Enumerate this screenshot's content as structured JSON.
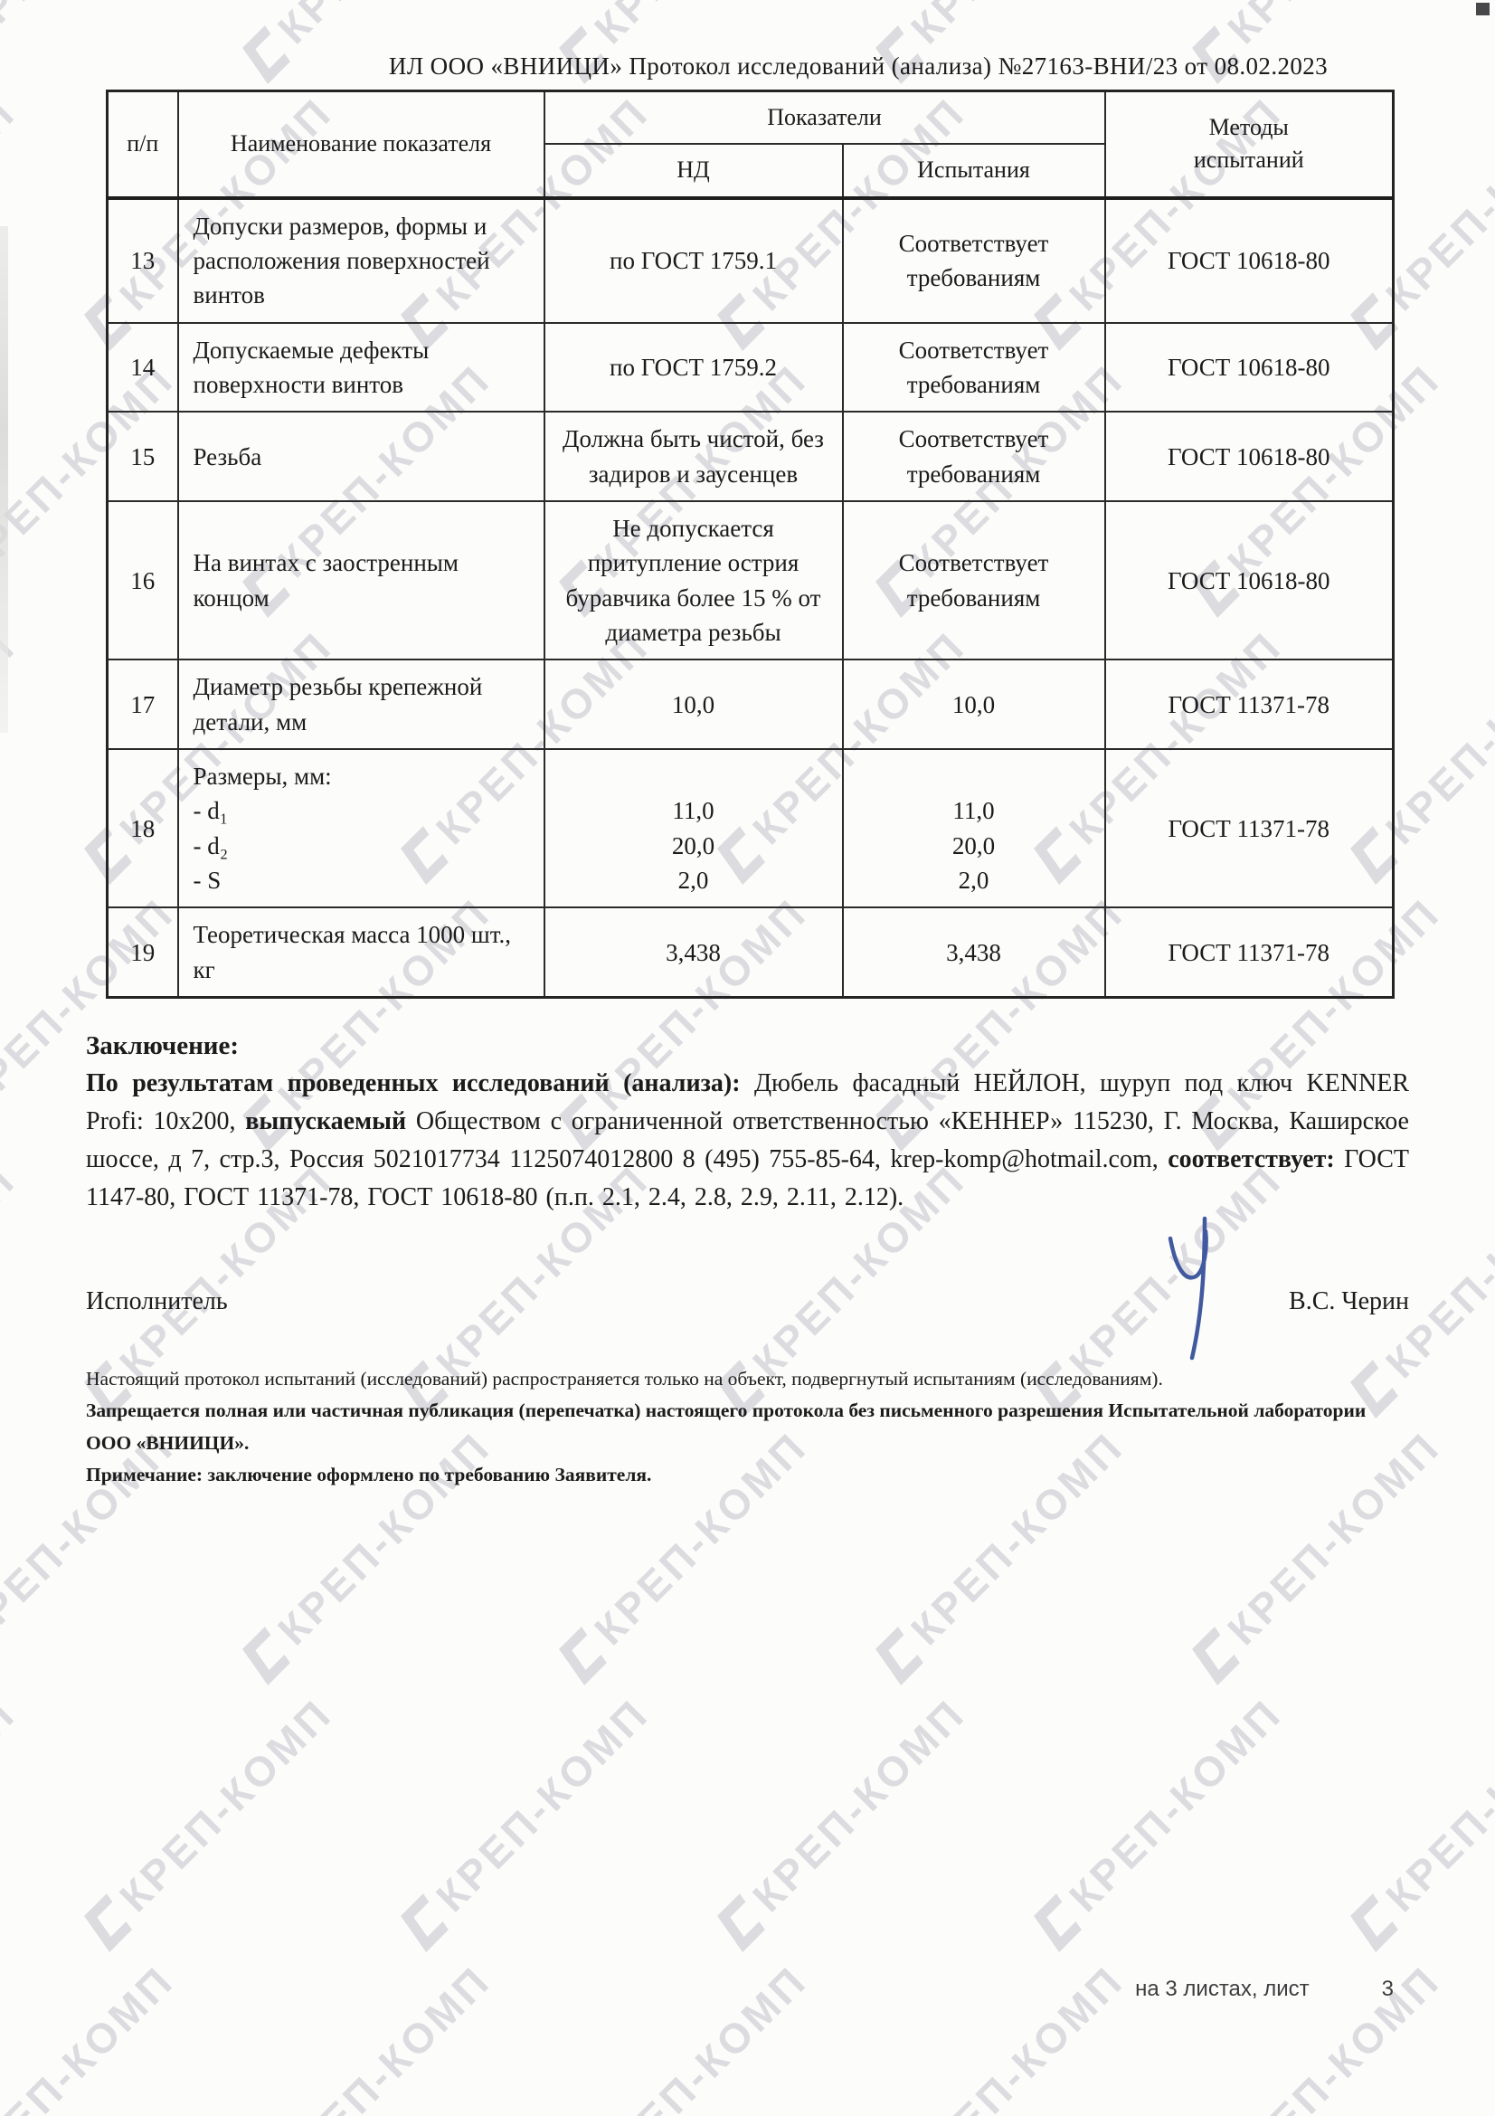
{
  "page": {
    "header_title": "ИЛ ООО «ВНИИЦИ»  Протокол исследований (анализа)  №27163-ВНИ/23 от  08.02.2023",
    "footer_sheets_label": "на 3  листах, лист",
    "footer_sheet_number": "3"
  },
  "watermark": {
    "text": "КРЕП-КОМП",
    "color": "#dcdce0"
  },
  "table": {
    "headers": {
      "num": "п/п",
      "name": "Наименование показателя",
      "indicators": "Показатели",
      "nd": "НД",
      "test": "Испытания",
      "methods": "Методы\nиспытаний"
    },
    "rows": [
      {
        "num": "13",
        "name": "Допуски размеров, формы и расположения поверхностей винтов",
        "nd": "по ГОСТ 1759.1",
        "test": "Соответствует требованиям",
        "method": "ГОСТ 10618-80"
      },
      {
        "num": "14",
        "name": "Допускаемые дефекты поверхности винтов",
        "nd": "по ГОСТ 1759.2",
        "test": "Соответствует требованиям",
        "method": "ГОСТ 10618-80"
      },
      {
        "num": "15",
        "name": "Резьба",
        "nd": "Должна быть чистой, без задиров и заусенцев",
        "test": "Соответствует требованиям",
        "method": "ГОСТ 10618-80"
      },
      {
        "num": "16",
        "name": "На винтах с заостренным концом",
        "nd": "Не допускается притупление острия буравчика более 15 % от диаметра резьбы",
        "test": "Соответствует требованиям",
        "method": "ГОСТ 10618-80"
      },
      {
        "num": "17",
        "name": "Диаметр резьбы крепежной детали, мм",
        "nd": "10,0",
        "test": "10,0",
        "method": "ГОСТ 11371-78"
      },
      {
        "num": "18",
        "name": "Размеры, мм:\n- d₁\n- d₂\n- S",
        "nd": "\n11,0\n20,0\n2,0",
        "test": "\n11,0\n20,0\n2,0",
        "method": "ГОСТ 11371-78"
      },
      {
        "num": "19",
        "name": "Теоретическая масса 1000 шт., кг",
        "nd": "3,438",
        "test": "3,438",
        "method": "ГОСТ 11371-78"
      }
    ]
  },
  "conclusion": {
    "heading": "Заключение:",
    "segments": [
      {
        "text": "По результатам проведенных исследований (анализа): ",
        "bold": true
      },
      {
        "text": "Дюбель фасадный НЕЙЛОН, шуруп под ключ KENNER Profi: 10х200, ",
        "bold": false
      },
      {
        "text": "выпускаемый ",
        "bold": true
      },
      {
        "text": "Обществом с ограниченной ответственностью «КЕННЕР»  115230, Г. Москва, Каширское шоссе, д 7, стр.3, Россия 5021017734 1125074012800 8 (495) 755-85-64, krep-komp@hotmail.com, ",
        "bold": false
      },
      {
        "text": "соответствует: ",
        "bold": true
      },
      {
        "text": "ГОСТ 1147-80, ГОСТ 11371-78, ГОСТ 10618-80 (п.п. 2.1, 2.4, 2.8, 2.9, 2.11, 2.12).",
        "bold": false
      }
    ]
  },
  "executor": {
    "label": "Исполнитель",
    "name": "В.С. Черин"
  },
  "notes": [
    {
      "text": "Настоящий протокол испытаний (исследований) распространяется только на объект, подвергнутый испытаниям (исследованиям).",
      "bold": false
    },
    {
      "text": "Запрещается полная или частичная публикация (перепечатка) настоящего протокола без письменного разрешения Испытательной лаборатории  ООО «ВНИИЦИ».",
      "bold": true
    },
    {
      "text": "Примечание: заключение оформлено по требованию Заявителя.",
      "bold": true
    }
  ]
}
